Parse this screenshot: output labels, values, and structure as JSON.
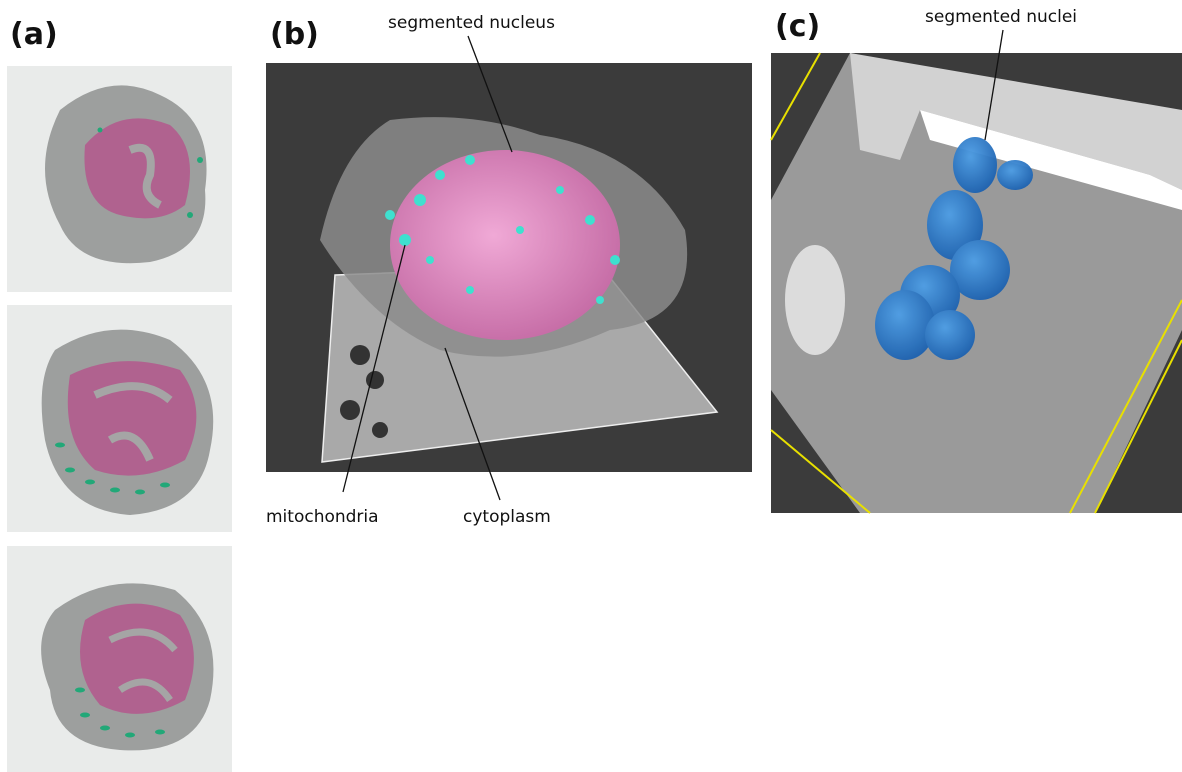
{
  "panels": [
    {
      "label": "(a)"
    },
    {
      "label": "(b)",
      "annotations": [
        "segmented nucleus",
        "mitochondria",
        "cytoplasm"
      ]
    },
    {
      "label": "(c)",
      "annotations": [
        "segmented nuclei"
      ]
    }
  ]
}
